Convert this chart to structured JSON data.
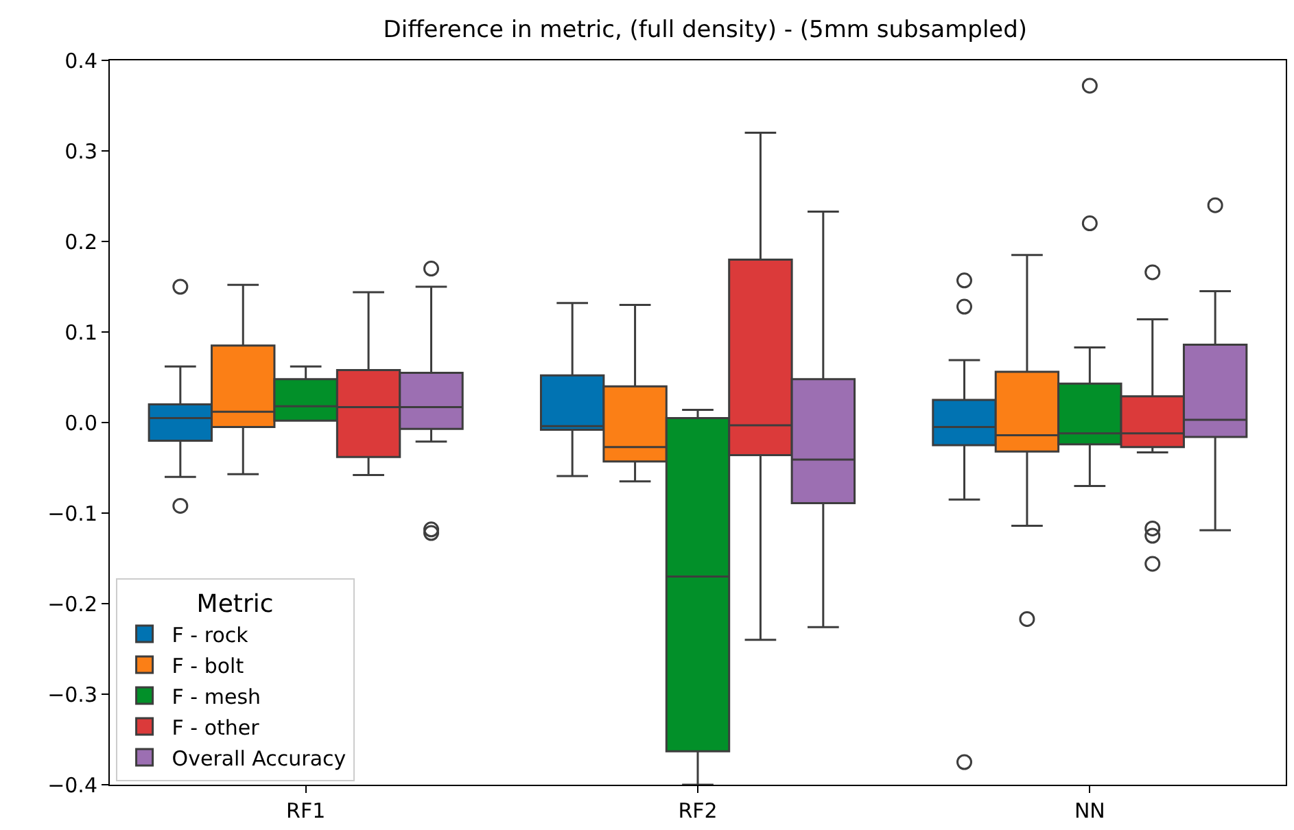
{
  "chart_data": {
    "type": "box",
    "title": "Difference in metric, (full density) - (5mm subsampled)",
    "categories": [
      "RF1",
      "RF2",
      "NN"
    ],
    "legend_title": "Metric",
    "legend": "bottom left",
    "ylim": [
      -0.4,
      0.4
    ],
    "yticks": [
      {
        "value": -0.4,
        "label": "−0.4"
      },
      {
        "value": -0.3,
        "label": "−0.3"
      },
      {
        "value": -0.2,
        "label": "−0.2"
      },
      {
        "value": -0.1,
        "label": "−0.1"
      },
      {
        "value": 0,
        "label": "0.0"
      },
      0.1,
      0.2,
      0.3,
      0.4
    ],
    "series": [
      {
        "name": "F - rock",
        "color": "#0173b2",
        "boxes": [
          {
            "low": -0.06,
            "q1": -0.02,
            "median": 0.005,
            "q3": 0.02,
            "high": 0.062,
            "outliers": [
              0.15,
              -0.092
            ]
          },
          {
            "low": -0.059,
            "q1": -0.008,
            "median": -0.004,
            "q3": 0.052,
            "high": 0.132
          },
          {
            "low": -0.085,
            "q1": -0.025,
            "median": -0.005,
            "q3": 0.025,
            "high": 0.069,
            "outliers": [
              0.157,
              0.128,
              -0.375
            ]
          }
        ]
      },
      {
        "name": "F - bolt",
        "color": "#fb7f16",
        "boxes": [
          {
            "low": -0.057,
            "q1": -0.005,
            "median": 0.012,
            "q3": 0.085,
            "high": 0.152
          },
          {
            "low": -0.065,
            "q1": -0.043,
            "median": -0.027,
            "q3": 0.04,
            "high": 0.13
          },
          {
            "low": -0.114,
            "q1": -0.032,
            "median": -0.014,
            "q3": 0.056,
            "high": 0.185,
            "outliers": [
              -0.217
            ]
          }
        ]
      },
      {
        "name": "F - mesh",
        "color": "#029029",
        "boxes": [
          {
            "low": 0.002,
            "q1": 0.002,
            "median": 0.018,
            "q3": 0.048,
            "high": 0.062
          },
          {
            "low": -0.4,
            "q1": -0.363,
            "median": -0.17,
            "q3": 0.005,
            "high": 0.014
          },
          {
            "low": -0.07,
            "q1": -0.024,
            "median": -0.012,
            "q3": 0.043,
            "high": 0.083,
            "outliers": [
              0.372,
              0.22
            ]
          }
        ]
      },
      {
        "name": "F - other",
        "color": "#db3a3a",
        "boxes": [
          {
            "low": -0.058,
            "q1": -0.038,
            "median": 0.017,
            "q3": 0.058,
            "high": 0.144
          },
          {
            "low": -0.24,
            "q1": -0.036,
            "median": -0.003,
            "q3": 0.18,
            "high": 0.32
          },
          {
            "low": -0.033,
            "q1": -0.027,
            "median": -0.012,
            "q3": 0.029,
            "high": 0.114,
            "outliers": [
              0.166,
              -0.117,
              -0.125,
              -0.156
            ]
          }
        ]
      },
      {
        "name": "Overall Accuracy",
        "color": "#9c6fb2",
        "boxes": [
          {
            "low": -0.021,
            "q1": -0.007,
            "median": 0.017,
            "q3": 0.055,
            "high": 0.15,
            "outliers": [
              0.17,
              -0.118,
              -0.122
            ]
          },
          {
            "low": -0.226,
            "q1": -0.089,
            "median": -0.041,
            "q3": 0.048,
            "high": 0.233
          },
          {
            "low": -0.119,
            "q1": -0.016,
            "median": 0.003,
            "q3": 0.086,
            "high": 0.145,
            "outliers": [
              0.24
            ]
          }
        ]
      }
    ]
  }
}
